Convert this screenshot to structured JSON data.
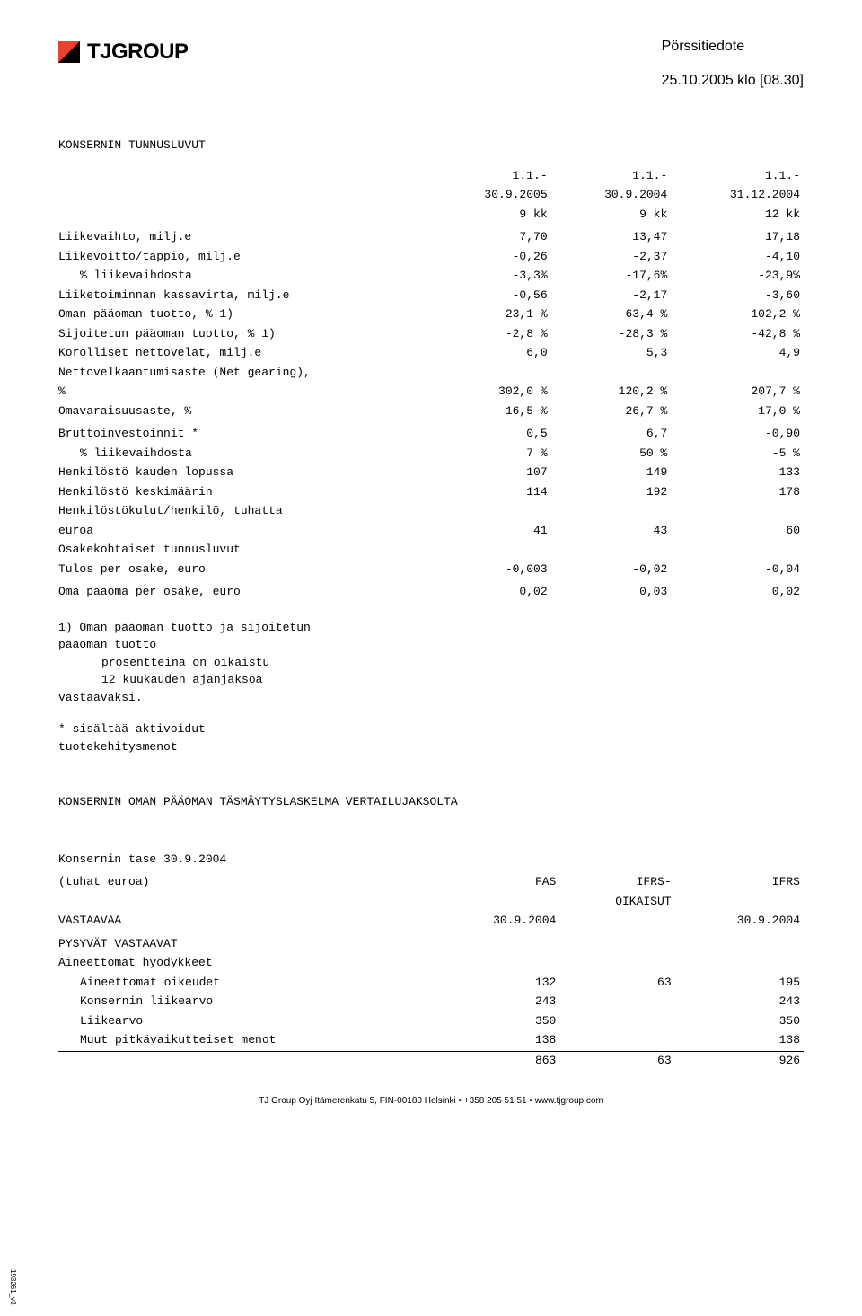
{
  "header": {
    "logo_text": "TJGROUP",
    "doc_type": "Pörssitiedote",
    "timestamp": "25.10.2005 klo [08.30]"
  },
  "section1_title": "KONSERNIN TUNNUSLUVUT",
  "periods": {
    "p1a": "1.1.-",
    "p1b": "30.9.2005",
    "p1c": "9 kk",
    "p2a": "1.1.-",
    "p2b": "30.9.2004",
    "p2c": "9 kk",
    "p3a": "1.1.-",
    "p3b": "31.12.2004",
    "p3c": "12 kk"
  },
  "rows1": [
    {
      "l": "Liikevaihto, milj.e",
      "v": [
        "7,70",
        "13,47",
        "17,18"
      ]
    },
    {
      "l": "Liikevoitto/tappio, milj.e",
      "v": [
        "-0,26",
        "-2,37",
        "-4,10"
      ]
    },
    {
      "l": "% liikevaihdosta",
      "indent": 1,
      "v": [
        "-3,3%",
        "-17,6%",
        "-23,9%"
      ]
    },
    {
      "l": "Liiketoiminnan kassavirta, milj.e",
      "v": [
        "-0,56",
        "-2,17",
        "-3,60"
      ]
    },
    {
      "l": "Oman pääoman tuotto, %   1)",
      "v": [
        "-23,1 %",
        "-63,4 %",
        "-102,2 %"
      ]
    },
    {
      "l": "Sijoitetun pääoman tuotto, %   1)",
      "v": [
        "-2,8 %",
        "-28,3 %",
        "-42,8 %"
      ]
    },
    {
      "l": "Korolliset nettovelat, milj.e",
      "v": [
        "6,0",
        "5,3",
        "4,9"
      ]
    },
    {
      "l": "Nettovelkaantumisaste (Net gearing),",
      "v": [
        "",
        "",
        ""
      ]
    },
    {
      "l": "%",
      "v": [
        "302,0 %",
        "120,2 %",
        "207,7 %"
      ]
    },
    {
      "l": "Omavaraisuusaste, %",
      "v": [
        "16,5 %",
        "26,7 %",
        "17,0 %"
      ]
    }
  ],
  "rows2": [
    {
      "l": "Bruttoinvestoinnit  *",
      "v": [
        "0,5",
        "6,7",
        "-0,90"
      ]
    },
    {
      "l": "% liikevaihdosta",
      "indent": 1,
      "v": [
        "7 %",
        "50 %",
        "-5 %"
      ]
    },
    {
      "l": "Henkilöstö kauden lopussa",
      "v": [
        "107",
        "149",
        "133"
      ]
    },
    {
      "l": "Henkilöstö keskimäärin",
      "v": [
        "114",
        "192",
        "178"
      ]
    },
    {
      "l": "Henkilöstökulut/henkilö, tuhatta",
      "v": [
        "",
        "",
        ""
      ]
    },
    {
      "l": "euroa",
      "v": [
        "41",
        "43",
        "60"
      ]
    },
    {
      "l": "Osakekohtaiset tunnusluvut",
      "v": [
        "",
        "",
        ""
      ]
    },
    {
      "l": "Tulos per osake, euro",
      "v": [
        "-0,003",
        "-0,02",
        "-0,04"
      ]
    }
  ],
  "row_oma": {
    "l": "Oma pääoma per osake, euro",
    "v": [
      "0,02",
      "0,03",
      "0,02"
    ]
  },
  "note1_lines": [
    "1) Oman pääoman tuotto ja sijoitetun",
    "pääoman tuotto",
    "    prosentteina on oikaistu",
    "    12 kuukauden ajanjaksoa",
    "vastaavaksi."
  ],
  "note2_lines": [
    "* sisältää aktivoidut",
    "tuotekehitysmenot"
  ],
  "section2_title": "KONSERNIN OMAN PÄÄOMAN TÄSMÄYTYSLASKELMA VERTAILUJAKSOLTA",
  "tase": {
    "title": "Konsernin tase 30.9.2004",
    "unit": "(tuhat euroa)",
    "cols": [
      "FAS",
      "IFRS-",
      "IFRS"
    ],
    "cols_sub": [
      "",
      "OIKAISUT",
      ""
    ],
    "vast_label": "VASTAAVAA",
    "vast_vals": [
      "30.9.2004",
      "",
      "30.9.2004"
    ],
    "sec": "PYSYVÄT VASTAAVAT",
    "sub": "Aineettomat hyödykkeet",
    "rows": [
      {
        "l": "Aineettomat oikeudet",
        "v": [
          "132",
          "63",
          "195"
        ]
      },
      {
        "l": "Konsernin liikearvo",
        "v": [
          "243",
          "",
          "243"
        ]
      },
      {
        "l": "Liikearvo",
        "v": [
          "350",
          "",
          "350"
        ]
      },
      {
        "l": "Muut pitkävaikutteiset menot",
        "v": [
          "138",
          "",
          "138"
        ]
      }
    ],
    "sum": [
      "863",
      "63",
      "926"
    ]
  },
  "footer": "TJ Group Oyj  Itämerenkatu 5, FIN-00180 Helsinki  •  +358 205 51 51  •  www.tjgroup.com",
  "sidenote": "193261_v3"
}
